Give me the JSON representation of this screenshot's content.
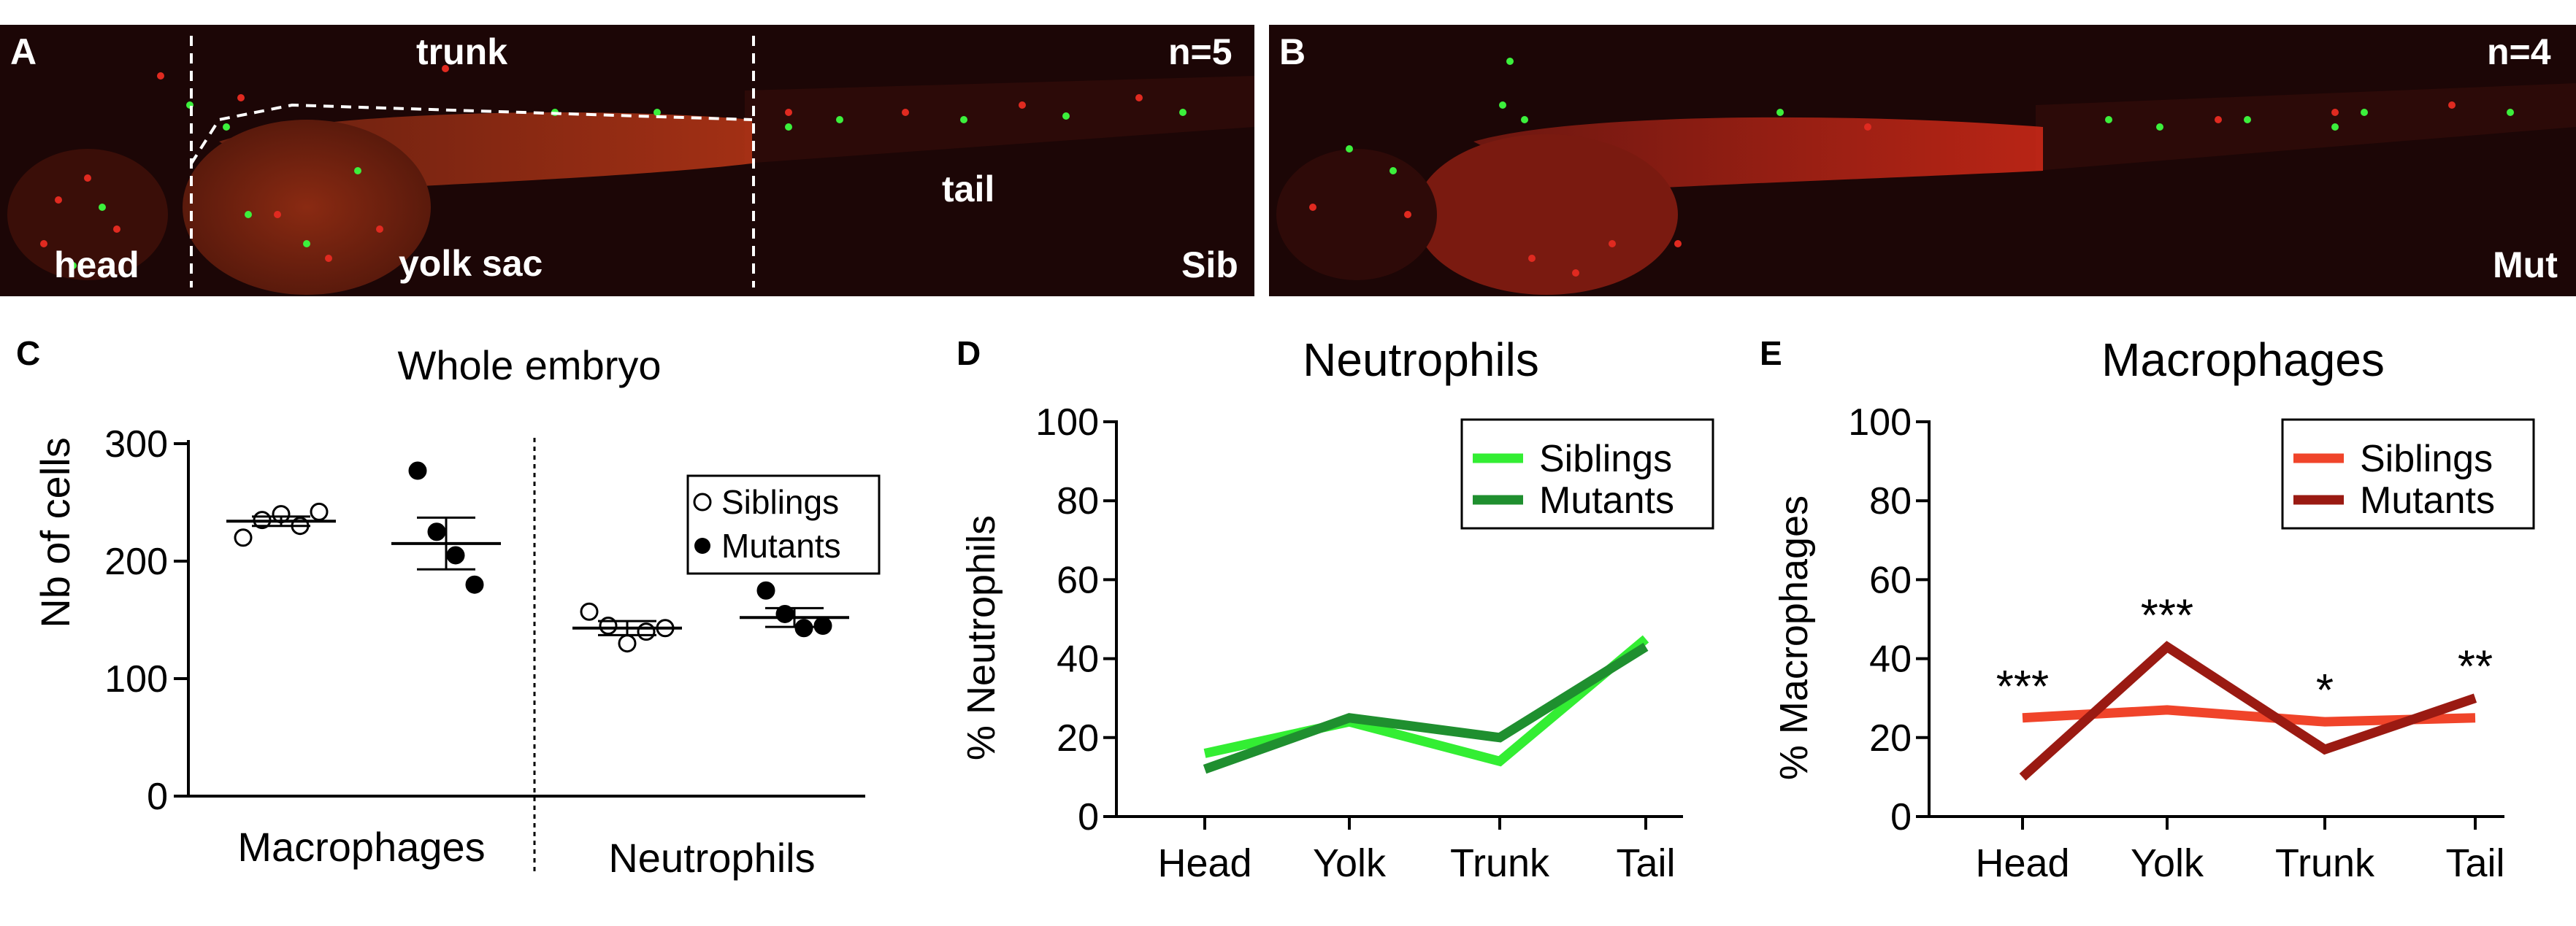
{
  "panel_a": {
    "letter": "A",
    "labels": {
      "trunk": "trunk",
      "n": "n=5",
      "tail": "tail",
      "head": "head",
      "yolk_sac": "yolk sac",
      "condition": "Sib"
    }
  },
  "panel_b": {
    "letter": "B",
    "labels": {
      "n": "n=4",
      "condition": "Mut"
    }
  },
  "colors": {
    "siblings_neutrophils": "#33ee33",
    "mutants_neutrophils": "#1f8f2f",
    "siblings_macrophages": "#f0442a",
    "mutants_macrophages": "#9a1a12",
    "microscopy_bg": "#1c0606"
  },
  "chart_data": [
    {
      "panel": "C",
      "type": "scatter",
      "title": "Whole embryo",
      "xlabel": "",
      "ylabel": "Nb of cells",
      "ylim": [
        0,
        300
      ],
      "yticks": [
        0,
        100,
        200,
        300
      ],
      "groups": [
        "Macrophages",
        "Neutrophils"
      ],
      "legend": {
        "position": "top-right",
        "entries": [
          "Siblings",
          "Mutants"
        ]
      },
      "series": [
        {
          "name": "Siblings",
          "marker": "open-circle",
          "group": "Macrophages",
          "values": [
            220,
            235,
            240,
            230,
            242
          ],
          "mean": 234,
          "sem": 4
        },
        {
          "name": "Mutants",
          "marker": "filled-circle",
          "group": "Macrophages",
          "values": [
            277,
            225,
            205,
            180
          ],
          "mean": 215,
          "sem": 22
        },
        {
          "name": "Siblings",
          "marker": "open-circle",
          "group": "Neutrophils",
          "values": [
            157,
            145,
            130,
            140,
            143
          ],
          "mean": 143,
          "sem": 6
        },
        {
          "name": "Mutants",
          "marker": "filled-circle",
          "group": "Neutrophils",
          "values": [
            175,
            155,
            143,
            145
          ],
          "mean": 152,
          "sem": 8
        }
      ]
    },
    {
      "panel": "D",
      "type": "line",
      "title": "Neutrophils",
      "xlabel": "",
      "ylabel": "% Neutrophils",
      "categories": [
        "Head",
        "Yolk",
        "Trunk",
        "Tail"
      ],
      "ylim": [
        0,
        100
      ],
      "yticks": [
        0,
        20,
        40,
        60,
        80,
        100
      ],
      "legend": {
        "position": "top-right"
      },
      "series": [
        {
          "name": "Siblings",
          "values": [
            16,
            24,
            14,
            45
          ]
        },
        {
          "name": "Mutants",
          "values": [
            12,
            25,
            20,
            43
          ]
        }
      ]
    },
    {
      "panel": "E",
      "type": "line",
      "title": "Macrophages",
      "xlabel": "",
      "ylabel": "% Macrophages",
      "categories": [
        "Head",
        "Yolk",
        "Trunk",
        "Tail"
      ],
      "ylim": [
        0,
        100
      ],
      "yticks": [
        0,
        20,
        40,
        60,
        80,
        100
      ],
      "legend": {
        "position": "top-right"
      },
      "series": [
        {
          "name": "Siblings",
          "values": [
            25,
            27,
            24,
            25
          ]
        },
        {
          "name": "Mutants",
          "values": [
            10,
            43,
            17,
            30
          ]
        }
      ],
      "annotations": [
        "***",
        "***",
        "*",
        "**"
      ]
    }
  ]
}
